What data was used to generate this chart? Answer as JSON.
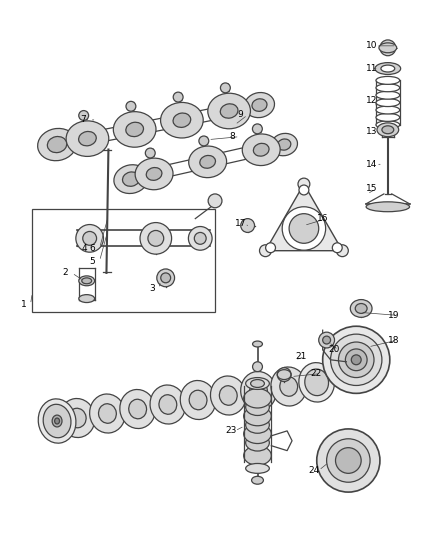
{
  "background_color": "#ffffff",
  "line_color": "#444444",
  "fig_width": 4.38,
  "fig_height": 5.33,
  "label_fontsize": 6.5
}
